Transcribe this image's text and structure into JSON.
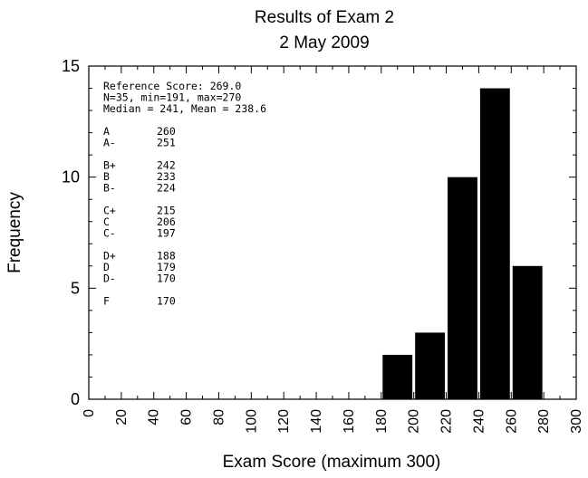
{
  "chart_data": {
    "type": "bar",
    "title": [
      "Results of Exam 2",
      "2 May 2009"
    ],
    "xlabel": "Exam Score (maximum 300)",
    "ylabel": "Frequency",
    "xlim": [
      0,
      300
    ],
    "ylim": [
      0,
      15
    ],
    "xticks": [
      "0",
      "20",
      "40",
      "60",
      "80",
      "100",
      "120",
      "140",
      "160",
      "180",
      "200",
      "220",
      "240",
      "260",
      "280",
      "300"
    ],
    "yticks": [
      "0",
      "5",
      "10",
      "15"
    ],
    "bin_width": 20,
    "bins": [
      {
        "start": 180,
        "value": 2
      },
      {
        "start": 200,
        "value": 3
      },
      {
        "start": 220,
        "value": 10
      },
      {
        "start": 240,
        "value": 14
      },
      {
        "start": 260,
        "value": 6
      }
    ],
    "bar_color": "#000000",
    "annotation": {
      "stats": [
        "Reference Score: 269.0",
        "N=35, min=191, max=270",
        "Median = 241, Mean = 238.6"
      ],
      "grades": [
        [
          {
            "grade": "A",
            "cutoff": "260"
          },
          {
            "grade": "A-",
            "cutoff": "251"
          }
        ],
        [
          {
            "grade": "B+",
            "cutoff": "242"
          },
          {
            "grade": "B",
            "cutoff": "233"
          },
          {
            "grade": "B-",
            "cutoff": "224"
          }
        ],
        [
          {
            "grade": "C+",
            "cutoff": " 215"
          },
          {
            "grade": "C",
            "cutoff": " 206"
          },
          {
            "grade": "C-",
            "cutoff": " 197"
          }
        ],
        [
          {
            "grade": "D+",
            "cutoff": " 188"
          },
          {
            "grade": "D",
            "cutoff": " 179"
          },
          {
            "grade": "D-",
            "cutoff": " 170"
          }
        ],
        [
          {
            "grade": "F",
            "cutoff": " 170"
          }
        ]
      ]
    }
  }
}
